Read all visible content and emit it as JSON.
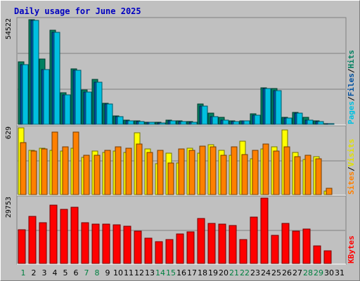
{
  "title": "Daily usage for June 2025",
  "colors": {
    "background": "#c0c0c0",
    "pages": "#00c0e0",
    "files": "#008060",
    "hits": "#00805a",
    "sites": "#ff8000",
    "visits": "#ffff00",
    "kbytes": "#ff0000",
    "weekend_label": "#008040",
    "weekday_label": "#000000",
    "grid": "#808080"
  },
  "chart_data": [
    {
      "type": "bar",
      "panel": "hits",
      "y_max_label": "54522",
      "ylim": [
        0,
        54522
      ],
      "label_parts": [
        {
          "text": "Pages",
          "color": "#00c0e0"
        },
        {
          "text": "/",
          "color": "#000000"
        },
        {
          "text": "Files",
          "color": "#0050a0"
        },
        {
          "text": "/",
          "color": "#000000"
        },
        {
          "text": "Hits",
          "color": "#008060"
        }
      ],
      "series": [
        {
          "name": "Hits",
          "color": "#008060",
          "values": [
            32500,
            54522,
            34000,
            49000,
            16500,
            29000,
            18000,
            23500,
            11000,
            4500,
            2200,
            1800,
            1100,
            1000,
            2100,
            1800,
            1400,
            10500,
            5900,
            3700,
            1700,
            1900,
            5500,
            19000,
            18500,
            3600,
            6300,
            3700,
            1900,
            300
          ]
        },
        {
          "name": "Files",
          "color": "#0050a0",
          "values": [
            31000,
            54000,
            28500,
            48000,
            15500,
            28000,
            17000,
            22000,
            10500,
            4000,
            1900,
            1600,
            1000,
            900,
            1800,
            1600,
            1200,
            9500,
            4200,
            2200,
            1300,
            1700,
            4700,
            18500,
            17500,
            3300,
            5800,
            2200,
            1600,
            250
          ]
        },
        {
          "name": "Pages",
          "color": "#00c0e0",
          "values": [
            31000,
            54000,
            28500,
            48000,
            15500,
            28000,
            17000,
            22000,
            10500,
            4000,
            1900,
            1600,
            1000,
            900,
            1800,
            1600,
            1200,
            9500,
            4200,
            2200,
            1300,
            1700,
            4700,
            18500,
            17500,
            3300,
            5800,
            2200,
            1600,
            250
          ]
        }
      ]
    },
    {
      "type": "bar",
      "panel": "visits",
      "y_max_label": "629",
      "ylim": [
        0,
        629
      ],
      "label_parts": [
        {
          "text": "Sites",
          "color": "#ff8000"
        },
        {
          "text": "/",
          "color": "#000000"
        },
        {
          "text": "Visits",
          "color": "#e0e000"
        }
      ],
      "series": [
        {
          "name": "Visits",
          "color": "#ffff00",
          "values": [
            629,
            420,
            440,
            420,
            410,
            440,
            350,
            410,
            400,
            410,
            400,
            580,
            430,
            290,
            390,
            300,
            440,
            390,
            470,
            420,
            370,
            500,
            340,
            430,
            450,
            610,
            400,
            330,
            360,
            30
          ]
        },
        {
          "name": "Sites",
          "color": "#ff8000",
          "values": [
            490,
            410,
            430,
            590,
            450,
            590,
            370,
            370,
            420,
            450,
            440,
            480,
            400,
            420,
            300,
            430,
            420,
            460,
            450,
            370,
            450,
            380,
            420,
            480,
            410,
            450,
            360,
            370,
            340,
            60
          ]
        }
      ]
    },
    {
      "type": "bar",
      "panel": "kbytes",
      "y_max_label": "29753",
      "ylim": [
        0,
        29753
      ],
      "label_parts": [
        {
          "text": "KBytes",
          "color": "#ff0000"
        }
      ],
      "series": [
        {
          "name": "KBytes",
          "color": "#ff0000",
          "values": [
            15200,
            21500,
            18500,
            26500,
            24500,
            25500,
            18500,
            17800,
            17800,
            17500,
            17000,
            14800,
            11500,
            9800,
            10800,
            13500,
            14500,
            20500,
            18100,
            17800,
            17200,
            11000,
            21100,
            29753,
            12700,
            18100,
            14800,
            15800,
            7900,
            5600
          ]
        }
      ]
    }
  ],
  "x_labels": [
    {
      "text": "1",
      "weekend": true
    },
    {
      "text": "2",
      "weekend": false
    },
    {
      "text": "3",
      "weekend": false
    },
    {
      "text": "4",
      "weekend": false
    },
    {
      "text": "5",
      "weekend": false
    },
    {
      "text": "6",
      "weekend": false
    },
    {
      "text": "7",
      "weekend": true
    },
    {
      "text": "8",
      "weekend": true
    },
    {
      "text": "9",
      "weekend": false
    },
    {
      "text": "10",
      "weekend": false
    },
    {
      "text": "11",
      "weekend": false
    },
    {
      "text": "12",
      "weekend": false
    },
    {
      "text": "13",
      "weekend": false
    },
    {
      "text": "14",
      "weekend": true
    },
    {
      "text": "15",
      "weekend": true
    },
    {
      "text": "16",
      "weekend": false
    },
    {
      "text": "17",
      "weekend": false
    },
    {
      "text": "18",
      "weekend": false
    },
    {
      "text": "19",
      "weekend": false
    },
    {
      "text": "20",
      "weekend": false
    },
    {
      "text": "21",
      "weekend": true
    },
    {
      "text": "22",
      "weekend": true
    },
    {
      "text": "23",
      "weekend": false
    },
    {
      "text": "24",
      "weekend": false
    },
    {
      "text": "25",
      "weekend": false
    },
    {
      "text": "26",
      "weekend": false
    },
    {
      "text": "27",
      "weekend": false
    },
    {
      "text": "28",
      "weekend": true
    },
    {
      "text": "29",
      "weekend": true
    },
    {
      "text": "30",
      "weekend": false
    },
    {
      "text": "31",
      "weekend": false
    }
  ]
}
